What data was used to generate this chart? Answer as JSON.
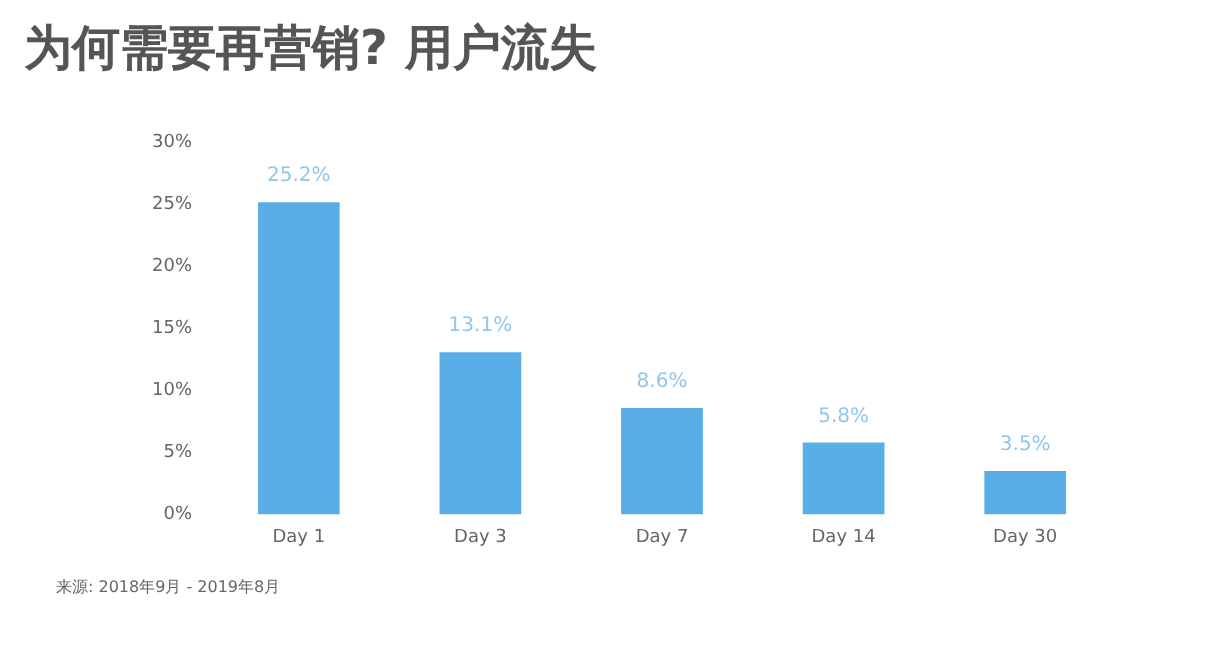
{
  "chart_data": {
    "type": "bar",
    "title": "为何需要再营销? 用户流失",
    "categories": [
      "Day 1",
      "Day 3",
      "Day 7",
      "Day 14",
      "Day 30"
    ],
    "values": [
      25.2,
      13.1,
      8.6,
      5.8,
      3.5
    ],
    "value_labels": [
      "25.2%",
      "13.1%",
      "8.6%",
      "5.8%",
      "3.5%"
    ],
    "color": "#5aaee8",
    "ylim": [
      0,
      30
    ],
    "yticks": [
      {
        "value": 0,
        "label": "0%"
      },
      {
        "value": 5,
        "label": "5%"
      },
      {
        "value": 10,
        "label": "10%"
      },
      {
        "value": 15,
        "label": "15%"
      },
      {
        "value": 20,
        "label": "20%"
      },
      {
        "value": 25,
        "label": "25%"
      },
      {
        "value": 30,
        "label": "30%"
      }
    ],
    "grid": false,
    "legend": false,
    "annotations": [
      "来源: 2018年9月 - 2019年8月"
    ]
  }
}
